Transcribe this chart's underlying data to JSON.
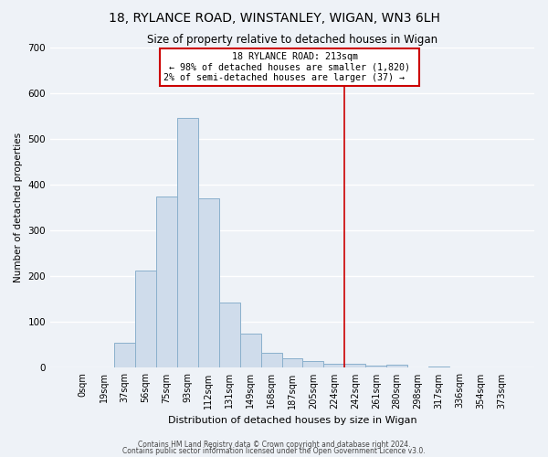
{
  "title": "18, RYLANCE ROAD, WINSTANLEY, WIGAN, WN3 6LH",
  "subtitle": "Size of property relative to detached houses in Wigan",
  "xlabel": "Distribution of detached houses by size in Wigan",
  "ylabel": "Number of detached properties",
  "bar_labels": [
    "0sqm",
    "19sqm",
    "37sqm",
    "56sqm",
    "75sqm",
    "93sqm",
    "112sqm",
    "131sqm",
    "149sqm",
    "168sqm",
    "187sqm",
    "205sqm",
    "224sqm",
    "242sqm",
    "261sqm",
    "280sqm",
    "298sqm",
    "317sqm",
    "336sqm",
    "354sqm",
    "373sqm"
  ],
  "bar_values": [
    0,
    0,
    55,
    213,
    375,
    545,
    370,
    143,
    75,
    33,
    20,
    15,
    9,
    9,
    5,
    7,
    0,
    3,
    1,
    0,
    1
  ],
  "bar_color": "#cfdceb",
  "bar_edgecolor": "#8ab0cc",
  "vline_x": 12.5,
  "vline_color": "#cc0000",
  "annotation_title": "18 RYLANCE ROAD: 213sqm",
  "annotation_line1": "← 98% of detached houses are smaller (1,820)",
  "annotation_line2": "2% of semi-detached houses are larger (37) →",
  "annotation_box_edgecolor": "#cc0000",
  "ylim": [
    0,
    700
  ],
  "yticks": [
    0,
    100,
    200,
    300,
    400,
    500,
    600,
    700
  ],
  "footnote1": "Contains HM Land Registry data © Crown copyright and database right 2024.",
  "footnote2": "Contains public sector information licensed under the Open Government Licence v3.0.",
  "background_color": "#eef2f7",
  "grid_color": "#ffffff"
}
